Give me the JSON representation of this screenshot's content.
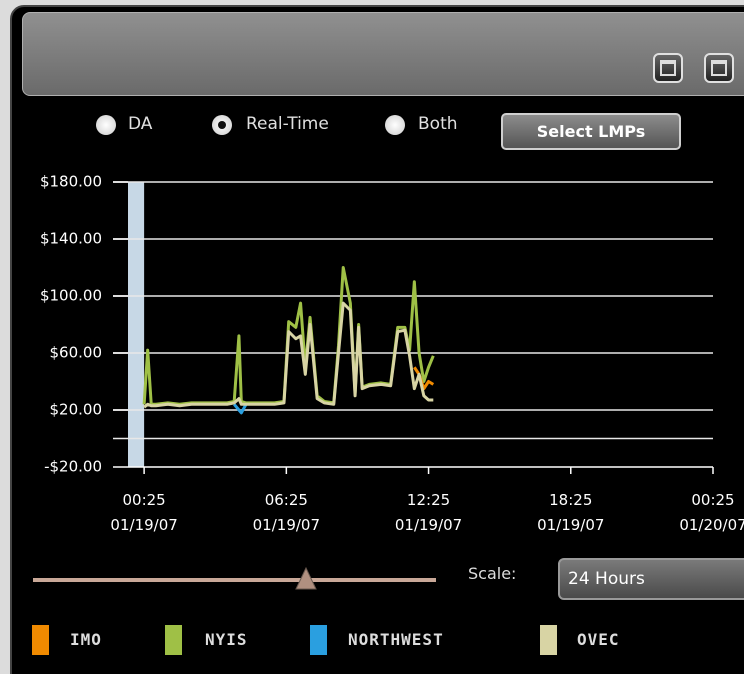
{
  "controls": {
    "radio_options": [
      "DA",
      "Real-Time",
      "Both"
    ],
    "selected_option": 1,
    "button": "Select LMPs",
    "scale_label": "Scale:",
    "scale_value": "24 Hours"
  },
  "chart_data": {
    "type": "line",
    "x": [
      0,
      0.15,
      0.3,
      0.5,
      1,
      1.5,
      2,
      2.5,
      3,
      3.5,
      3.8,
      4.0,
      4.1,
      4.3,
      4.6,
      5,
      5.5,
      5.9,
      6.1,
      6.4,
      6.6,
      6.8,
      7.0,
      7.3,
      7.6,
      8.0,
      8.2,
      8.4,
      8.7,
      8.9,
      9.05,
      9.2,
      9.5,
      10,
      10.4,
      10.7,
      11.0,
      11.2,
      11.4,
      11.6,
      11.8,
      12.0,
      12.2
    ],
    "series": [
      {
        "name": "NYIS",
        "color": "#9fc046",
        "values": [
          24,
          62,
          24,
          24,
          25,
          24,
          25,
          25,
          25,
          25,
          26,
          72,
          26,
          25,
          25,
          25,
          25,
          26,
          82,
          78,
          95,
          50,
          85,
          30,
          26,
          25,
          65,
          120,
          95,
          32,
          80,
          36,
          38,
          39,
          38,
          78,
          78,
          62,
          110,
          60,
          40,
          50,
          58
        ]
      },
      {
        "name": "NORTHWEST",
        "color": "#2a9fe0",
        "values": [
          null,
          null,
          null,
          null,
          null,
          null,
          null,
          null,
          null,
          null,
          24,
          20,
          18,
          24,
          null,
          null,
          null,
          null,
          null,
          null,
          null,
          null,
          null,
          null,
          null,
          null,
          null,
          null,
          null,
          null,
          null,
          null,
          null,
          null,
          null,
          null,
          null,
          null,
          null,
          null,
          null,
          null,
          null
        ]
      },
      {
        "name": "IMO",
        "color": "#f08a00",
        "values": [
          null,
          null,
          null,
          null,
          null,
          null,
          null,
          null,
          null,
          null,
          null,
          null,
          null,
          null,
          null,
          null,
          null,
          null,
          null,
          null,
          null,
          null,
          null,
          null,
          null,
          null,
          null,
          null,
          null,
          null,
          null,
          null,
          null,
          null,
          null,
          null,
          null,
          null,
          50,
          45,
          35,
          40,
          38
        ]
      },
      {
        "name": "OVEC",
        "color": "#d8d4a4",
        "values": [
          22,
          24,
          23,
          23,
          24,
          23,
          24,
          24,
          24,
          24,
          25,
          28,
          24,
          24,
          24,
          24,
          24,
          25,
          75,
          70,
          72,
          45,
          80,
          28,
          25,
          24,
          60,
          95,
          90,
          30,
          78,
          35,
          37,
          38,
          37,
          75,
          76,
          58,
          35,
          45,
          30,
          27,
          27
        ]
      }
    ],
    "legend_order": [
      2,
      0,
      1,
      3
    ],
    "xlim": [
      -0.68,
      24
    ],
    "xticks": [
      {
        "value": 0,
        "label": "00:25\n01/19/07"
      },
      {
        "value": 6,
        "label": "06:25\n01/19/07"
      },
      {
        "value": 12,
        "label": "12:25\n01/19/07"
      },
      {
        "value": 18,
        "label": "18:25\n01/19/07"
      },
      {
        "value": 24,
        "label": "00:25\n01/20/07"
      }
    ],
    "ylim": [
      -20,
      180
    ],
    "yticks": [
      {
        "value": 180,
        "label": "$180.00"
      },
      {
        "value": 140,
        "label": "$140.00"
      },
      {
        "value": 100,
        "label": "$100.00"
      },
      {
        "value": 60,
        "label": "$60.00"
      },
      {
        "value": 20,
        "label": "$20.00"
      },
      {
        "value": -20,
        "label": "-$20.00"
      }
    ],
    "gridlines": [
      180,
      140,
      100,
      60,
      20,
      0
    ],
    "grid": true
  }
}
